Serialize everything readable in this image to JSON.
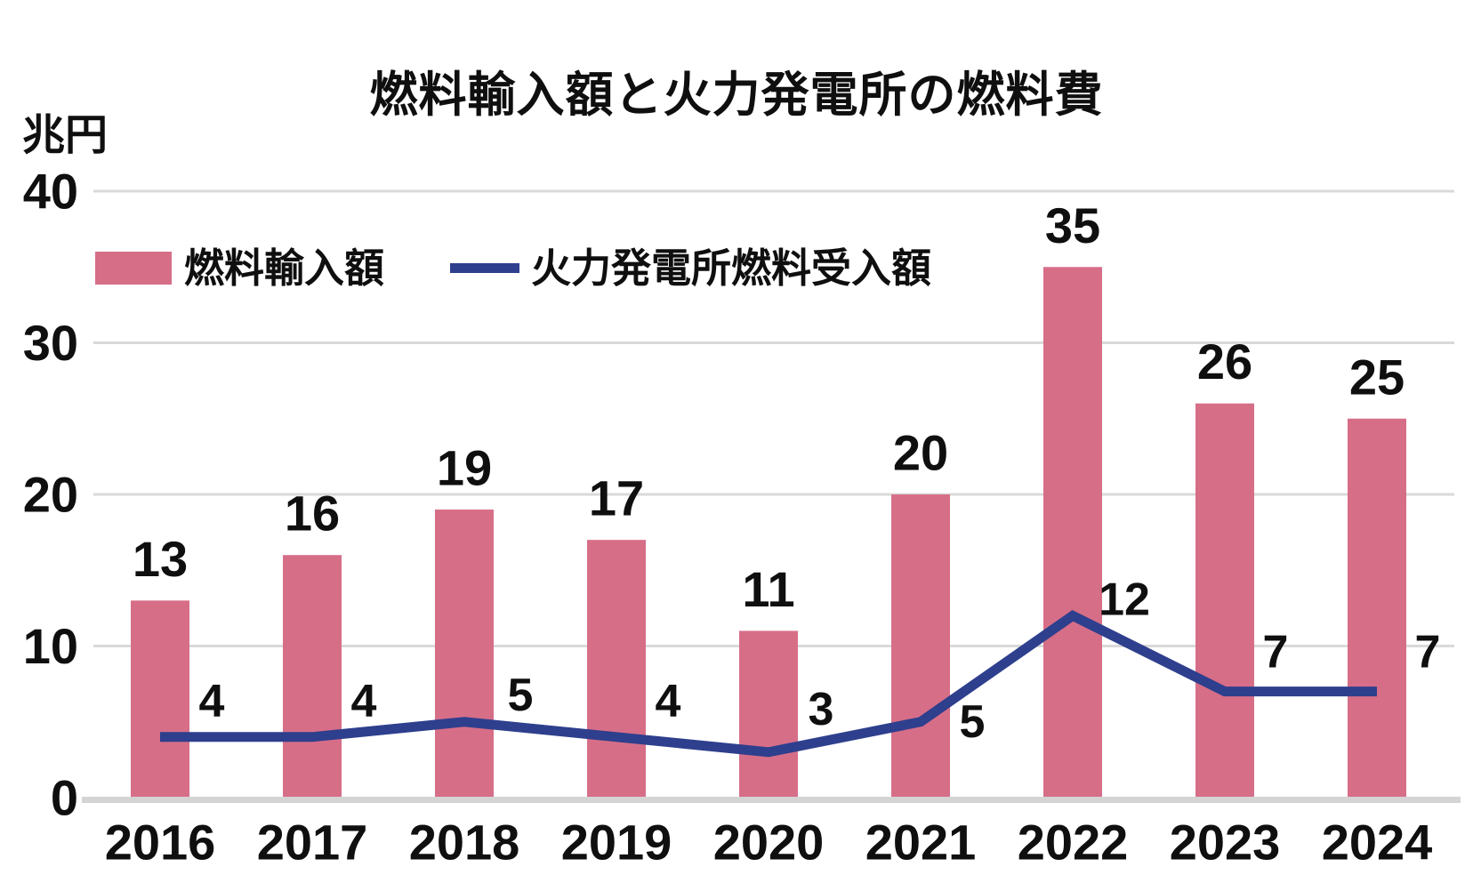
{
  "title": "燃料輸入額と火力発電所の燃料費",
  "y_axis_unit": "兆円",
  "legend": {
    "bar_label": "燃料輸入額",
    "line_label": "火力発電所燃料受入額"
  },
  "colors": {
    "bar": "#d76e88",
    "line": "#2e3f8d",
    "grid": "#d9d9d9",
    "axis_baseline": "#d4d4d4",
    "text": "#0f0f0f",
    "background": "#ffffff"
  },
  "chart_data": {
    "type": "bar+line",
    "title": "燃料輸入額と火力発電所の燃料費",
    "ylabel": "兆円",
    "xlabel": "",
    "categories": [
      "2016",
      "2017",
      "2018",
      "2019",
      "2020",
      "2021",
      "2022",
      "2023",
      "2024"
    ],
    "series": [
      {
        "name": "燃料輸入額",
        "type": "bar",
        "color": "#d76e88",
        "values": [
          13,
          16,
          19,
          17,
          11,
          20,
          35,
          26,
          25
        ]
      },
      {
        "name": "火力発電所燃料受入額",
        "type": "line",
        "color": "#2e3f8d",
        "values": [
          4,
          4,
          5,
          4,
          3,
          5,
          12,
          7,
          7
        ]
      }
    ],
    "ylim": [
      0,
      40
    ],
    "yticks": [
      0,
      10,
      20,
      30,
      40
    ],
    "grid": true,
    "data_labels": true,
    "legend_position": "top-left-inside"
  }
}
